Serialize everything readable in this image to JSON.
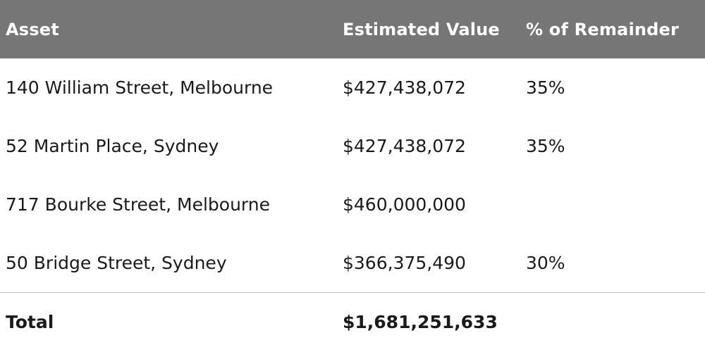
{
  "table": {
    "headers": {
      "asset": "Asset",
      "value": "Estimated Value",
      "pct": "% of Remainder"
    },
    "rows": [
      {
        "asset": "140 William Street, Melbourne",
        "value": "$427,438,072",
        "pct": "35%"
      },
      {
        "asset": "52 Martin Place, Sydney",
        "value": "$427,438,072",
        "pct": "35%"
      },
      {
        "asset": "717 Bourke Street, Melbourne",
        "value": "$460,000,000",
        "pct": ""
      },
      {
        "asset": "50 Bridge Street, Sydney",
        "value": "$366,375,490",
        "pct": "30%"
      }
    ],
    "total": {
      "label": "Total",
      "value": "$1,681,251,633",
      "pct": ""
    }
  },
  "colors": {
    "header_bg": "#767676",
    "header_text": "#ffffff",
    "body_text": "#1a1a1a",
    "divider": "#bdbdbd"
  }
}
